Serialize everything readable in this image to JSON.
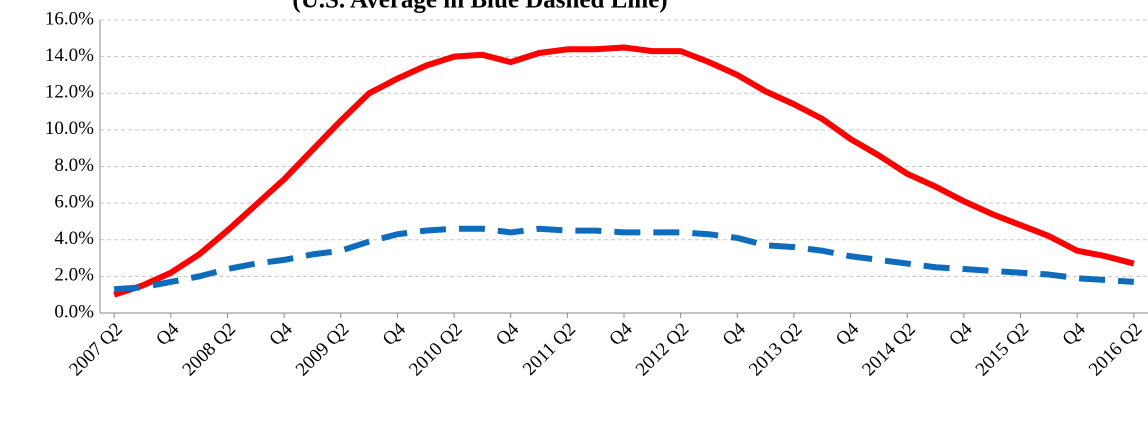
{
  "chart_data": {
    "type": "line",
    "subtitle": "(U.S. Average in Blue Dashed Line)",
    "categories": [
      "2007 Q2",
      null,
      "Q4",
      null,
      "2008 Q2",
      null,
      "Q4",
      null,
      "2009 Q2",
      null,
      "Q4",
      null,
      "2010 Q2",
      null,
      "Q4",
      null,
      "2011 Q2",
      null,
      "Q4",
      null,
      "2012 Q2",
      null,
      "Q4",
      null,
      "2013 Q2",
      null,
      "Q4",
      null,
      "2014 Q2",
      null,
      "Q4",
      null,
      "2015 Q2",
      null,
      "Q4",
      null,
      "2016 Q2"
    ],
    "series": [
      {
        "color": "#ff0000",
        "dashed": false,
        "values": [
          1.0,
          1.5,
          2.2,
          3.2,
          4.5,
          5.9,
          7.3,
          8.9,
          10.5,
          12.0,
          12.8,
          13.5,
          14.0,
          14.1,
          13.7,
          14.2,
          14.4,
          14.4,
          14.5,
          14.3,
          14.3,
          13.7,
          13.0,
          12.1,
          11.4,
          10.6,
          9.5,
          8.6,
          7.6,
          6.9,
          6.1,
          5.4,
          4.8,
          4.2,
          3.4,
          3.1,
          2.7
        ]
      },
      {
        "color": "#0f6cbd",
        "dashed": true,
        "values": [
          1.3,
          1.4,
          1.7,
          2.0,
          2.4,
          2.7,
          2.9,
          3.2,
          3.4,
          3.9,
          4.3,
          4.5,
          4.6,
          4.6,
          4.4,
          4.6,
          4.5,
          4.5,
          4.4,
          4.4,
          4.4,
          4.3,
          4.1,
          3.7,
          3.6,
          3.4,
          3.1,
          2.9,
          2.7,
          2.5,
          2.4,
          2.3,
          2.2,
          2.1,
          1.9,
          1.8,
          1.7
        ]
      }
    ],
    "ylim": [
      0,
      16
    ],
    "yticks": [
      {
        "value": 0,
        "label": "0.0%"
      },
      {
        "value": 2,
        "label": "2.0%"
      },
      {
        "value": 4,
        "label": "4.0%"
      },
      {
        "value": 6,
        "label": "6.0%"
      },
      {
        "value": 8,
        "label": "8.0%"
      },
      {
        "value": 10,
        "label": "10.0%"
      },
      {
        "value": 12,
        "label": "12.0%"
      },
      {
        "value": 14,
        "label": "14.0%"
      },
      {
        "value": 16,
        "label": "16.0%"
      }
    ],
    "grid": true
  }
}
